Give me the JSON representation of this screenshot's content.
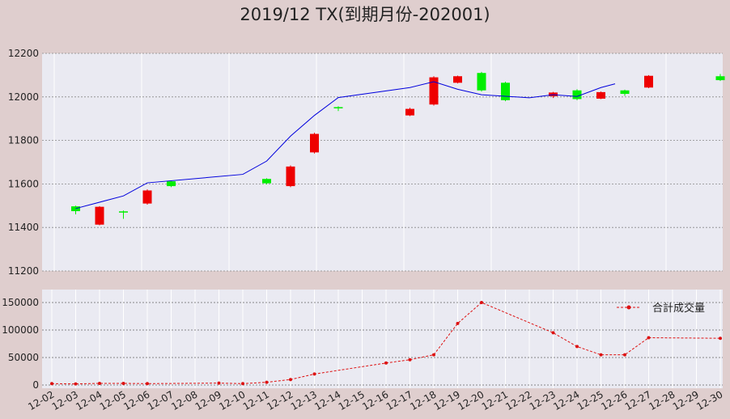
{
  "chart_data": [
    {
      "type": "candlestick",
      "title": "2019/12 TX(到期月份-202001)",
      "ylim": [
        11200,
        12200
      ],
      "yticks": [
        11200,
        11400,
        11600,
        11800,
        12000,
        12200
      ],
      "x": [
        "12-02",
        "12-03",
        "12-04",
        "12-05",
        "12-06",
        "12-07",
        "12-08",
        "12-09",
        "12-10",
        "12-11",
        "12-12",
        "12-13",
        "12-14",
        "12-15",
        "12-16",
        "12-17",
        "12-18",
        "12-19",
        "12-20",
        "12-21",
        "12-22",
        "12-23",
        "12-24",
        "12-25",
        "12-26",
        "12-27",
        "12-28",
        "12-29",
        "12-30"
      ],
      "candles": [
        {
          "x": "12-03",
          "open": 11475,
          "close": 11497,
          "high": 11500,
          "low": 11460
        },
        {
          "x": "12-04",
          "open": 11495,
          "close": 11413,
          "high": 11498,
          "low": 11410
        },
        {
          "x": "12-05",
          "open": 11470,
          "close": 11474,
          "high": 11478,
          "low": 11440
        },
        {
          "x": "12-06",
          "open": 11570,
          "close": 11510,
          "high": 11575,
          "low": 11505
        },
        {
          "x": "12-07",
          "open": 11590,
          "close": 11612,
          "high": 11615,
          "low": 11585
        },
        {
          "x": "12-11",
          "open": 11603,
          "close": 11623,
          "high": 11626,
          "low": 11598
        },
        {
          "x": "12-12",
          "open": 11680,
          "close": 11590,
          "high": 11685,
          "low": 11585
        },
        {
          "x": "12-13",
          "open": 11830,
          "close": 11745,
          "high": 11835,
          "low": 11740
        },
        {
          "x": "12-14",
          "open": 11951,
          "close": 11953,
          "high": 11957,
          "low": 11935
        },
        {
          "x": "12-17",
          "open": 11945,
          "close": 11915,
          "high": 11950,
          "low": 11912
        },
        {
          "x": "12-18",
          "open": 12090,
          "close": 11965,
          "high": 12095,
          "low": 11960
        },
        {
          "x": "12-19",
          "open": 12095,
          "close": 12065,
          "high": 12098,
          "low": 12062
        },
        {
          "x": "12-20",
          "open": 12030,
          "close": 12110,
          "high": 12115,
          "low": 12025
        },
        {
          "x": "12-21",
          "open": 11985,
          "close": 12065,
          "high": 12070,
          "low": 11980
        },
        {
          "x": "12-23",
          "open": 12020,
          "close": 12003,
          "high": 12023,
          "low": 11995
        },
        {
          "x": "12-24",
          "open": 11990,
          "close": 12030,
          "high": 12035,
          "low": 11985
        },
        {
          "x": "12-25",
          "open": 12022,
          "close": 11992,
          "high": 12025,
          "low": 11990
        },
        {
          "x": "12-26",
          "open": 12014,
          "close": 12030,
          "high": 12033,
          "low": 12005
        },
        {
          "x": "12-27",
          "open": 12097,
          "close": 12043,
          "high": 12100,
          "low": 12040
        },
        {
          "x": "12-30",
          "open": 12077,
          "close": 12095,
          "high": 12105,
          "low": 12073
        }
      ],
      "ma_line": {
        "color": "#0000dd",
        "x": [
          "12-03",
          "12-05",
          "12-06",
          "12-10",
          "12-11",
          "12-12",
          "12-13",
          "12-14",
          "12-17",
          "12-18",
          "12-19",
          "12-20",
          "12-22",
          "12-23",
          "12-24",
          "12-25"
        ],
        "values": [
          11487,
          11545,
          11605,
          11644,
          11705,
          11820,
          11915,
          11997,
          12043,
          12070,
          12035,
          12010,
          11996,
          12010,
          12002,
          12043
        ]
      },
      "end_x": "12-26",
      "end_value": 12060,
      "up_color": "#00ee00",
      "down_color": "#ee0000",
      "grid": true
    },
    {
      "type": "line",
      "ylim": [
        0,
        150000
      ],
      "yticks": [
        0,
        50000,
        100000,
        150000
      ],
      "series": [
        {
          "name": "合計成交量",
          "color": "#dd1111",
          "x": [
            "12-02",
            "12-03",
            "12-04",
            "12-05",
            "12-06",
            "12-09",
            "12-10",
            "12-11",
            "12-12",
            "12-13",
            "12-16",
            "12-17",
            "12-18",
            "12-19",
            "12-20",
            "12-23",
            "12-24",
            "12-25",
            "12-26",
            "12-27",
            "12-30"
          ],
          "values": [
            2500,
            2000,
            3000,
            3000,
            2500,
            3500,
            2500,
            5000,
            10000,
            20000,
            40000,
            46000,
            55000,
            112000,
            150000,
            95000,
            70000,
            55000,
            55000,
            86000,
            85000
          ]
        }
      ],
      "legend": "top-right",
      "grid": true
    }
  ]
}
